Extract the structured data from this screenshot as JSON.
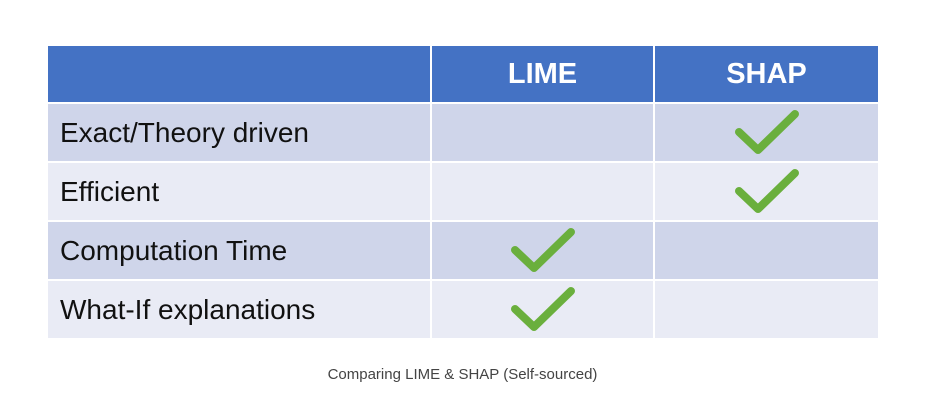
{
  "table": {
    "headers": [
      "",
      "LIME",
      "SHAP"
    ],
    "rows": [
      {
        "feature": "Exact/Theory driven",
        "lime": false,
        "shap": true
      },
      {
        "feature": "Efficient",
        "lime": false,
        "shap": true
      },
      {
        "feature": "Computation Time",
        "lime": true,
        "shap": false
      },
      {
        "feature": "What-If explanations",
        "lime": true,
        "shap": false
      }
    ],
    "check_icon": "check-icon"
  },
  "caption": "Comparing LIME & SHAP (Self-sourced)",
  "colors": {
    "header_bg": "#4472c4",
    "row_odd_bg": "#cfd5ea",
    "row_even_bg": "#e9ebf5",
    "check": "#6aaf3d"
  }
}
